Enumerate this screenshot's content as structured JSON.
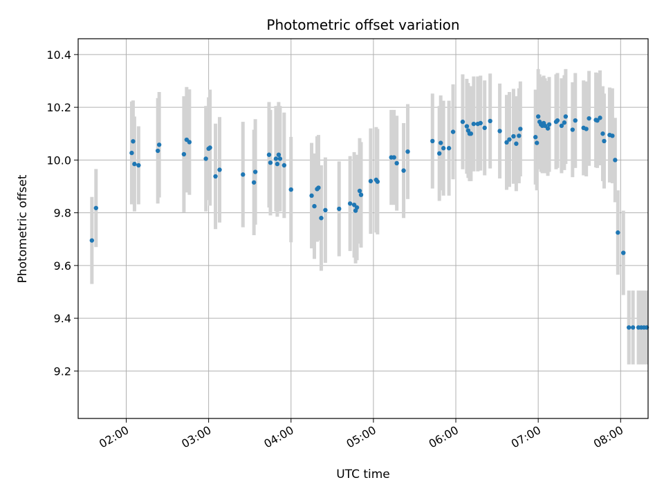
{
  "chart_data": {
    "type": "scatter",
    "title": "Photometric offset variation",
    "xlabel": "UTC time",
    "ylabel": "Photometric offset",
    "x_axis": "time",
    "xlim": [
      "01:25",
      "08:20"
    ],
    "ylim": [
      9.02,
      10.46
    ],
    "xticks": [
      "02:00",
      "03:00",
      "04:00",
      "05:00",
      "06:00",
      "07:00",
      "08:00"
    ],
    "yticks": [
      "9.2",
      "9.4",
      "9.6",
      "9.8",
      "10.0",
      "10.2",
      "10.4"
    ],
    "grid": true,
    "colors": {
      "points": "#1f77b4",
      "errorbars": "#d3d3d3",
      "grid": "#b0b0b0"
    },
    "series": [
      {
        "x": [
          "01:35",
          "01:38",
          "02:04",
          "02:05",
          "02:06",
          "02:09",
          "02:23",
          "02:24",
          "02:42",
          "02:44",
          "02:46",
          "02:58",
          "03:00",
          "03:01",
          "03:05",
          "03:08",
          "03:25",
          "03:33",
          "03:34",
          "03:44",
          "03:45",
          "03:49",
          "03:50",
          "03:51",
          "03:52",
          "03:55",
          "04:00",
          "04:15",
          "04:17",
          "04:19",
          "04:20",
          "04:22",
          "04:25",
          "04:35",
          "04:43",
          "04:46",
          "04:47",
          "04:48",
          "04:50",
          "04:51",
          "04:58",
          "05:02",
          "05:03",
          "05:13",
          "05:15",
          "05:17",
          "05:22",
          "05:25",
          "05:43",
          "05:48",
          "05:49",
          "05:51",
          "05:55",
          "05:58",
          "06:05",
          "06:08",
          "06:09",
          "06:10",
          "06:11",
          "06:13",
          "06:16",
          "06:18",
          "06:21",
          "06:25",
          "06:32",
          "06:37",
          "06:39",
          "06:42",
          "06:44",
          "06:46",
          "06:47",
          "06:58",
          "06:59",
          "07:00",
          "07:01",
          "07:02",
          "07:03",
          "07:04",
          "07:05",
          "07:07",
          "07:08",
          "07:13",
          "07:14",
          "07:17",
          "07:19",
          "07:20",
          "07:25",
          "07:27",
          "07:33",
          "07:35",
          "07:37",
          "07:42",
          "07:43",
          "07:45",
          "07:47",
          "07:48",
          "07:52",
          "07:54",
          "07:56",
          "07:58",
          "08:02",
          "08:06",
          "08:09",
          "08:13",
          "08:15",
          "08:17",
          "08:19"
        ],
        "y": [
          9.695,
          9.818,
          10.027,
          10.071,
          9.985,
          9.98,
          10.035,
          10.058,
          10.022,
          10.077,
          10.068,
          10.005,
          10.043,
          10.047,
          9.938,
          9.963,
          9.945,
          9.915,
          9.955,
          10.02,
          9.99,
          10.005,
          9.985,
          10.02,
          10.005,
          9.98,
          9.888,
          9.865,
          9.825,
          9.89,
          9.895,
          9.78,
          9.81,
          9.815,
          9.835,
          9.83,
          9.808,
          9.82,
          9.883,
          9.868,
          9.92,
          9.925,
          9.918,
          10.01,
          10.01,
          9.988,
          9.96,
          10.032,
          10.072,
          10.025,
          10.065,
          10.045,
          10.045,
          10.107,
          10.145,
          10.128,
          10.112,
          10.1,
          10.1,
          10.137,
          10.137,
          10.14,
          10.122,
          10.148,
          10.11,
          10.067,
          10.078,
          10.09,
          10.062,
          10.092,
          10.118,
          10.087,
          10.065,
          10.165,
          10.145,
          10.135,
          10.13,
          10.14,
          10.13,
          10.12,
          10.135,
          10.145,
          10.15,
          10.13,
          10.142,
          10.165,
          10.115,
          10.15,
          10.122,
          10.118,
          10.158,
          10.152,
          10.15,
          10.16,
          10.1,
          10.072,
          10.095,
          10.092,
          10.0,
          9.725,
          9.648,
          9.365,
          9.365,
          9.365,
          9.365,
          9.365,
          9.365
        ],
        "err": [
          0.165,
          0.148,
          0.195,
          0.155,
          0.18,
          0.148,
          0.2,
          0.2,
          0.22,
          0.2,
          0.2,
          0.2,
          0.195,
          0.22,
          0.2,
          0.2,
          0.2,
          0.2,
          0.2,
          0.2,
          0.2,
          0.2,
          0.2,
          0.2,
          0.2,
          0.2,
          0.2,
          0.2,
          0.2,
          0.2,
          0.2,
          0.2,
          0.2,
          0.18,
          0.18,
          0.2,
          0.2,
          0.2,
          0.2,
          0.2,
          0.2,
          0.2,
          0.2,
          0.18,
          0.18,
          0.18,
          0.18,
          0.18,
          0.18,
          0.18,
          0.18,
          0.18,
          0.18,
          0.18,
          0.18,
          0.18,
          0.18,
          0.18,
          0.18,
          0.18,
          0.18,
          0.18,
          0.18,
          0.18,
          0.18,
          0.18,
          0.18,
          0.18,
          0.18,
          0.18,
          0.18,
          0.18,
          0.18,
          0.18,
          0.18,
          0.18,
          0.18,
          0.18,
          0.18,
          0.18,
          0.18,
          0.18,
          0.18,
          0.18,
          0.18,
          0.18,
          0.18,
          0.18,
          0.18,
          0.18,
          0.18,
          0.18,
          0.18,
          0.18,
          0.18,
          0.18,
          0.18,
          0.18,
          0.16,
          0.16,
          0.16,
          0.14,
          0.14,
          0.14,
          0.14,
          0.14,
          0.14
        ]
      }
    ]
  }
}
